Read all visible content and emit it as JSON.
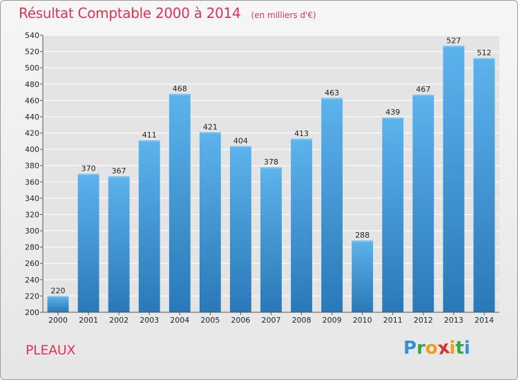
{
  "chart_data": {
    "type": "bar",
    "title": "Résultat Comptable 2000 à 2014",
    "subtitle": "(en milliers d'€)",
    "categories": [
      "2000",
      "2001",
      "2002",
      "2003",
      "2004",
      "2005",
      "2006",
      "2007",
      "2008",
      "2009",
      "2010",
      "2011",
      "2012",
      "2013",
      "2014"
    ],
    "values": [
      220,
      370,
      367,
      411,
      468,
      421,
      404,
      378,
      413,
      463,
      288,
      439,
      467,
      527,
      512
    ],
    "ylim": [
      200,
      540
    ],
    "yticks": [
      200,
      220,
      240,
      260,
      280,
      300,
      320,
      340,
      360,
      380,
      400,
      420,
      440,
      460,
      480,
      500,
      520,
      540
    ],
    "grid": true,
    "bar_color": "#4aa3e0",
    "bar_color_dark": "#2f7fbf"
  },
  "place": "PLEAUX",
  "logo": {
    "letters": [
      "P",
      "r",
      "o",
      "x",
      "i",
      "t",
      "i"
    ],
    "colors": [
      "#3a8fd0",
      "#3aa64a",
      "#e8a020",
      "#d83030",
      "#e8a020",
      "#3aa64a",
      "#3a8fd0"
    ]
  },
  "colors": {
    "title": "#dd3355",
    "grid": "#ffffff",
    "axis": "#555555"
  }
}
